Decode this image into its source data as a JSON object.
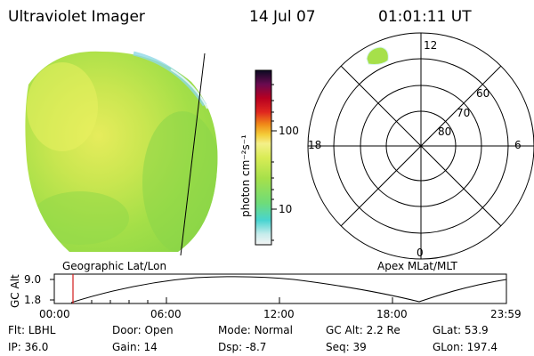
{
  "header": {
    "title": "Ultraviolet Imager",
    "date": "14 Jul 07",
    "time": "01:01:11 UT"
  },
  "colorbar": {
    "unit": "photon cm⁻²s⁻¹",
    "ticks": [
      "100",
      "10"
    ]
  },
  "polar_plot": {
    "mlt_labels": {
      "top": "12",
      "left": "18",
      "right": "6",
      "bottom": "0"
    },
    "lat_labels": [
      "60",
      "70",
      "80"
    ]
  },
  "map_labels": {
    "geographic": "Geographic Lat/Lon",
    "apex": "Apex MLat/MLT"
  },
  "altitude_plot": {
    "ylabel": "GC Alt",
    "yticks": [
      "9.0",
      "1.8"
    ],
    "xticks": [
      "00:00",
      "06:00",
      "12:00",
      "18:00",
      "23:59"
    ]
  },
  "info": {
    "row1": [
      {
        "label": "Flt:",
        "value": "LBHL"
      },
      {
        "label": "Door:",
        "value": "Open"
      },
      {
        "label": "Mode:",
        "value": "Normal"
      },
      {
        "label": "GC Alt:",
        "value": "2.2 Re"
      },
      {
        "label": "GLat:",
        "value": "53.9"
      }
    ],
    "row2": [
      {
        "label": "IP:",
        "value": "36.0"
      },
      {
        "label": "Gain:",
        "value": "14"
      },
      {
        "label": "Dsp:",
        "value": "-8.7"
      },
      {
        "label": "Seq:",
        "value": "39"
      },
      {
        "label": "GLon:",
        "value": "197.4"
      }
    ]
  },
  "colors": {
    "image_green": "#9fe047",
    "image_yellow": "#e8ee5a",
    "image_cyan": "#7fd8d8",
    "current_time_marker": "#d11a1a"
  }
}
